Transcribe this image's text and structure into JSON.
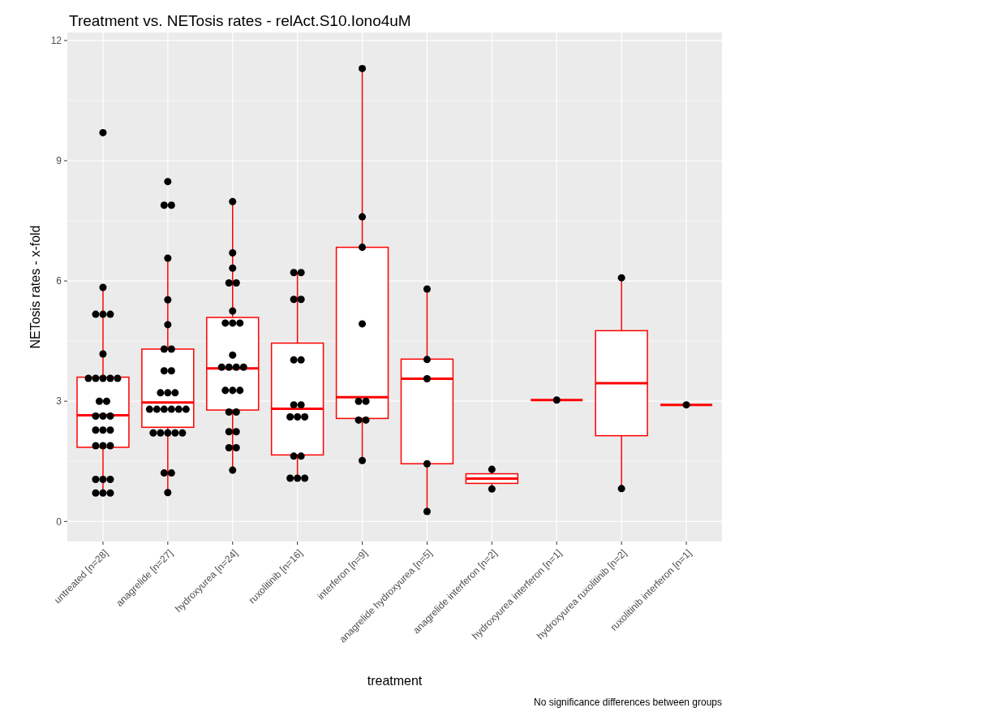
{
  "chart_data": {
    "type": "box",
    "title": "Treatment vs. NETosis rates - relAct.S10.Iono4uM",
    "xlabel": "treatment",
    "ylabel": "NETosis rates - x-fold",
    "annotations": [
      "No significance differences between groups"
    ],
    "categories": [
      "untreated [n=28]",
      "anagrelide [n=27]",
      "hydroxyurea [n=24]",
      "ruxolitinib [n=16]",
      "interferon [n=9]",
      "anagrelide hydroxyurea [n=5]",
      "anagrelide interferon [n=2]",
      "hydroxyurea interferon [n=1]",
      "hydroxyurea ruxolitinib [n=2]",
      "ruxolitinib interferon [n=1]"
    ],
    "ylim": [
      -0.5,
      12.2
    ],
    "yticks": [
      0,
      {
        "value": 1.5,
        "label": null
      },
      3,
      {
        "value": 4.5,
        "label": null
      },
      6,
      {
        "value": 7.5,
        "label": null
      },
      9,
      {
        "value": 10.5,
        "label": null
      },
      12
    ],
    "grid": true,
    "series": [
      {
        "type": "box",
        "color": "#ff0000",
        "boxes": [
          {
            "low": 0.68,
            "q1": 1.85,
            "median": 2.65,
            "q3": 3.6,
            "high": 5.82
          },
          {
            "low": 0.72,
            "q1": 2.35,
            "median": 2.97,
            "q3": 4.3,
            "high": 6.57
          },
          {
            "low": 1.28,
            "q1": 2.78,
            "median": 3.82,
            "q3": 5.09,
            "high": 7.98
          },
          {
            "low": 1.08,
            "q1": 1.66,
            "median": 2.81,
            "q3": 4.45,
            "high": 6.21
          },
          {
            "low": 1.52,
            "q1": 2.57,
            "median": 3.1,
            "q3": 6.84,
            "high": 11.3
          },
          {
            "low": 0.25,
            "q1": 1.44,
            "median": 3.56,
            "q3": 4.05,
            "high": 5.8
          },
          {
            "low": 0.81,
            "q1": 0.95,
            "median": 1.07,
            "q3": 1.19,
            "high": 1.3
          },
          {
            "low": 3.03,
            "q1": 3.03,
            "median": 3.03,
            "q3": 3.03,
            "high": 3.03
          },
          {
            "low": 0.82,
            "q1": 2.14,
            "median": 3.45,
            "q3": 4.76,
            "high": 6.08
          },
          {
            "low": 2.91,
            "q1": 2.91,
            "median": 2.91,
            "q3": 2.91,
            "high": 2.91
          }
        ]
      },
      {
        "type": "scatter",
        "color": "#000000",
        "marker": "circle",
        "x": [
          "untreated [n=28]",
          "untreated [n=28]",
          "untreated [n=28]",
          "untreated [n=28]",
          "untreated [n=28]",
          "untreated [n=28]",
          "untreated [n=28]",
          "untreated [n=28]",
          "untreated [n=28]",
          "untreated [n=28]",
          "untreated [n=28]",
          "untreated [n=28]",
          "untreated [n=28]",
          "untreated [n=28]",
          "untreated [n=28]",
          "untreated [n=28]",
          "untreated [n=28]",
          "untreated [n=28]",
          "untreated [n=28]",
          "untreated [n=28]",
          "untreated [n=28]",
          "untreated [n=28]",
          "untreated [n=28]",
          "untreated [n=28]",
          "untreated [n=28]",
          "untreated [n=28]",
          "untreated [n=28]",
          "untreated [n=28]",
          "anagrelide [n=27]",
          "anagrelide [n=27]",
          "anagrelide [n=27]",
          "anagrelide [n=27]",
          "anagrelide [n=27]",
          "anagrelide [n=27]",
          "anagrelide [n=27]",
          "anagrelide [n=27]",
          "anagrelide [n=27]",
          "anagrelide [n=27]",
          "anagrelide [n=27]",
          "anagrelide [n=27]",
          "anagrelide [n=27]",
          "anagrelide [n=27]",
          "anagrelide [n=27]",
          "anagrelide [n=27]",
          "anagrelide [n=27]",
          "anagrelide [n=27]",
          "anagrelide [n=27]",
          "anagrelide [n=27]",
          "anagrelide [n=27]",
          "anagrelide [n=27]",
          "anagrelide [n=27]",
          "anagrelide [n=27]",
          "anagrelide [n=27]",
          "anagrelide [n=27]",
          "anagrelide [n=27]",
          "hydroxyurea [n=24]",
          "hydroxyurea [n=24]",
          "hydroxyurea [n=24]",
          "hydroxyurea [n=24]",
          "hydroxyurea [n=24]",
          "hydroxyurea [n=24]",
          "hydroxyurea [n=24]",
          "hydroxyurea [n=24]",
          "hydroxyurea [n=24]",
          "hydroxyurea [n=24]",
          "hydroxyurea [n=24]",
          "hydroxyurea [n=24]",
          "hydroxyurea [n=24]",
          "hydroxyurea [n=24]",
          "hydroxyurea [n=24]",
          "hydroxyurea [n=24]",
          "hydroxyurea [n=24]",
          "hydroxyurea [n=24]",
          "hydroxyurea [n=24]",
          "hydroxyurea [n=24]",
          "hydroxyurea [n=24]",
          "hydroxyurea [n=24]",
          "hydroxyurea [n=24]",
          "hydroxyurea [n=24]",
          "ruxolitinib [n=16]",
          "ruxolitinib [n=16]",
          "ruxolitinib [n=16]",
          "ruxolitinib [n=16]",
          "ruxolitinib [n=16]",
          "ruxolitinib [n=16]",
          "ruxolitinib [n=16]",
          "ruxolitinib [n=16]",
          "ruxolitinib [n=16]",
          "ruxolitinib [n=16]",
          "ruxolitinib [n=16]",
          "ruxolitinib [n=16]",
          "ruxolitinib [n=16]",
          "ruxolitinib [n=16]",
          "ruxolitinib [n=16]",
          "ruxolitinib [n=16]",
          "interferon [n=9]",
          "interferon [n=9]",
          "interferon [n=9]",
          "interferon [n=9]",
          "interferon [n=9]",
          "interferon [n=9]",
          "interferon [n=9]",
          "interferon [n=9]",
          "interferon [n=9]",
          "anagrelide hydroxyurea [n=5]",
          "anagrelide hydroxyurea [n=5]",
          "anagrelide hydroxyurea [n=5]",
          "anagrelide hydroxyurea [n=5]",
          "anagrelide hydroxyurea [n=5]",
          "anagrelide interferon [n=2]",
          "anagrelide interferon [n=2]",
          "hydroxyurea interferon [n=1]",
          "hydroxyurea ruxolitinib [n=2]",
          "hydroxyurea ruxolitinib [n=2]",
          "ruxolitinib interferon [n=1]"
        ],
        "values": [
          9.7,
          5.84,
          5.17,
          5.17,
          5.17,
          4.18,
          3.57,
          3.57,
          3.57,
          3.57,
          3.57,
          3.0,
          3.0,
          2.63,
          2.63,
          2.63,
          2.28,
          2.28,
          2.28,
          1.89,
          1.89,
          1.89,
          1.05,
          1.05,
          1.05,
          0.71,
          0.71,
          0.71,
          8.48,
          7.89,
          7.89,
          6.57,
          5.53,
          4.91,
          4.3,
          4.3,
          3.76,
          3.76,
          3.21,
          3.21,
          3.21,
          2.8,
          2.8,
          2.8,
          2.8,
          2.8,
          2.8,
          2.21,
          2.21,
          2.21,
          2.21,
          2.21,
          1.21,
          1.21,
          0.72,
          7.98,
          6.7,
          6.32,
          5.95,
          5.95,
          5.25,
          4.95,
          4.95,
          4.95,
          4.15,
          3.85,
          3.85,
          3.85,
          3.85,
          3.27,
          3.27,
          3.27,
          2.73,
          2.73,
          2.24,
          2.24,
          1.84,
          1.84,
          1.28,
          6.21,
          6.21,
          5.54,
          5.54,
          4.03,
          4.03,
          2.91,
          2.91,
          2.61,
          2.61,
          2.61,
          1.63,
          1.63,
          1.08,
          1.08,
          1.08,
          11.3,
          7.6,
          6.84,
          4.93,
          3.0,
          3.0,
          2.53,
          2.53,
          1.52,
          5.8,
          4.04,
          3.56,
          1.44,
          0.25,
          1.3,
          0.81,
          3.03,
          6.08,
          0.82,
          2.91
        ]
      }
    ]
  }
}
